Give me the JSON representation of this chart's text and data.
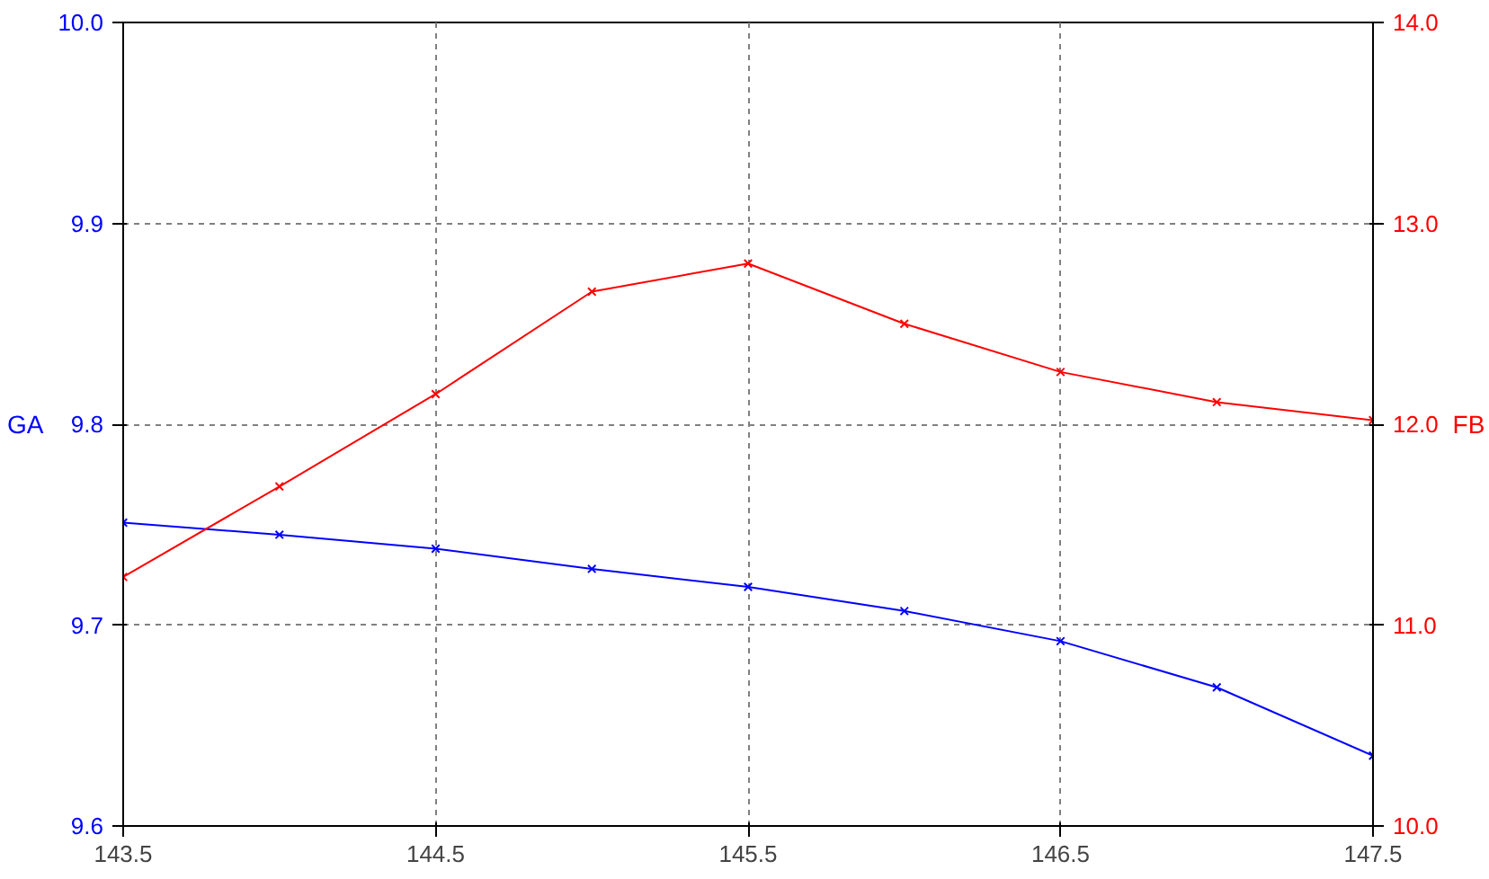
{
  "chart_data": {
    "type": "line",
    "ylabel": "GA",
    "y2label": "FB",
    "x": [
      143.5,
      144,
      144.5,
      145,
      145.5,
      146,
      146.5,
      147,
      147.5
    ],
    "series": [
      {
        "color": "#0000ff",
        "values": [
          9.751,
          9.745,
          9.738,
          9.728,
          9.719,
          9.707,
          9.692,
          9.669,
          9.635
        ]
      },
      {
        "color": "#ff0000",
        "axis": "y2",
        "values": [
          11.24,
          11.69,
          12.15,
          12.66,
          12.8,
          12.5,
          12.26,
          12.11,
          12.02
        ]
      }
    ],
    "xlim": [
      143.5,
      147.5
    ],
    "xticks": [
      143.5,
      144.5,
      145.5,
      146.5,
      147.5
    ],
    "ylim": [
      9.6,
      10.0
    ],
    "yticks": [
      9.6,
      9.7,
      9.8,
      9.9,
      {
        "value": 10.0,
        "label": "10.0"
      }
    ],
    "y2lim": [
      10.0,
      14.0
    ],
    "y2ticks": [
      {
        "value": 10,
        "label": "10.0"
      },
      {
        "value": 11,
        "label": "11.0"
      },
      {
        "value": 12,
        "label": "12.0"
      },
      {
        "value": 13,
        "label": "13.0"
      },
      {
        "value": 14,
        "label": "14.0"
      }
    ],
    "grid": true,
    "marker": "cross",
    "line_style": "solid"
  }
}
